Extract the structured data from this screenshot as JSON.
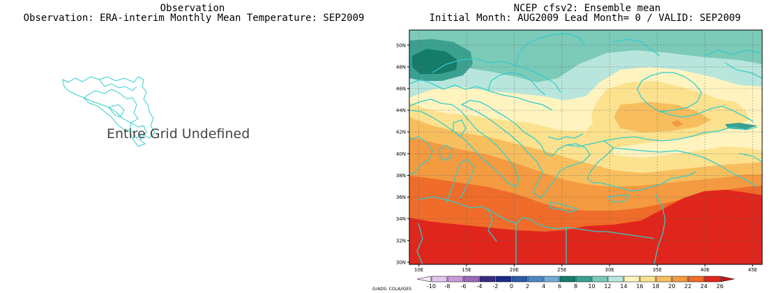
{
  "left_panel": {
    "title_line1": "Observation",
    "title_line2": "Observation: ERA-interim Monthly Mean Temperature: SEP2009",
    "message": "Entire Grid Undefined"
  },
  "right_panel": {
    "title_line1": "NCEP cfsv2: Ensemble mean",
    "title_line2": "Initial Month: AUG2009  Lead Month= 0 / VALID: SEP2009"
  },
  "map": {
    "lon_ticks": [
      "10E",
      "15E",
      "20E",
      "25E",
      "30E",
      "35E",
      "40E",
      "45E"
    ],
    "lat_ticks": [
      "30N",
      "32N",
      "34N",
      "36N",
      "38N",
      "40N",
      "42N",
      "44N",
      "46N",
      "48N",
      "50N"
    ],
    "coastline_color": "#33cccc",
    "grid_style": "dotted",
    "extent": {
      "lon": [
        9,
        46
      ],
      "lat": [
        29.8,
        51.4
      ]
    }
  },
  "colorbar": {
    "levels": [
      "-10",
      "-8",
      "-6",
      "-4",
      "-2",
      "0",
      "2",
      "4",
      "6",
      "8",
      "10",
      "12",
      "14",
      "16",
      "18",
      "20",
      "22",
      "24",
      "26"
    ],
    "colors": [
      "#f6e6f6",
      "#e2c4ec",
      "#c89ad8",
      "#9a6ab8",
      "#3c2a80",
      "#1a2a8a",
      "#2a5aa8",
      "#4c86c2",
      "#74acd8",
      "#167c6a",
      "#3aa090",
      "#7ccab8",
      "#b8e6dc",
      "#fff4c0",
      "#fce28e",
      "#f8be5e",
      "#f49a40",
      "#ef6c2a",
      "#e0261c",
      "#c01818"
    ],
    "credit": "GrADS: COLA/IGES"
  }
}
